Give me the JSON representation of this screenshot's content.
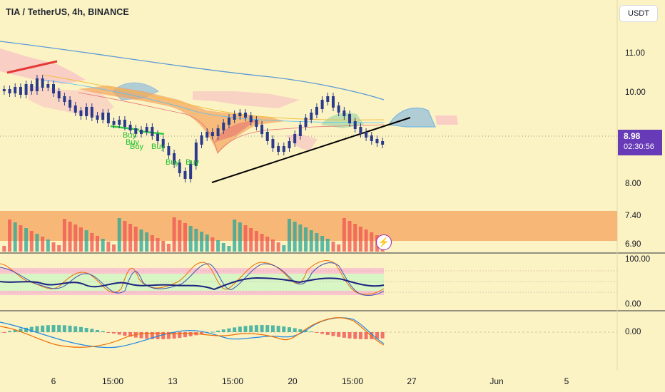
{
  "header": {
    "symbol_title": "TIA / TetherUS, 4h, BINANCE",
    "currency_button": "USDT"
  },
  "price_badge": {
    "price": "8.98",
    "countdown": "02:30:56",
    "color": "#673ab7"
  },
  "price_axis": {
    "labels": [
      "11.00",
      "10.00",
      "8.00",
      "7.40",
      "6.90"
    ]
  },
  "oscillator_axis": {
    "labels": [
      "100.00",
      "0.00"
    ]
  },
  "macd_axis": {
    "labels": [
      "0.00"
    ]
  },
  "time_axis": {
    "labels": [
      "6",
      "15:00",
      "13",
      "15:00",
      "20",
      "15:00",
      "27",
      "Jun",
      "5"
    ]
  },
  "signals": {
    "buy_labels": [
      "Buy",
      "Buy",
      "Buy",
      "Buy",
      "Buy",
      "Buy"
    ]
  },
  "icons": {
    "alert": "lightning-icon"
  },
  "colors": {
    "background": "#fcf3c4",
    "bull": "#26a69a",
    "bear": "#ef5350",
    "candle": "#2a3a8c",
    "trendline": "#000000",
    "upper_band": "#4a90e2",
    "cloud": "#f8bbd0",
    "volume_zone": "#f6ad6a"
  }
}
